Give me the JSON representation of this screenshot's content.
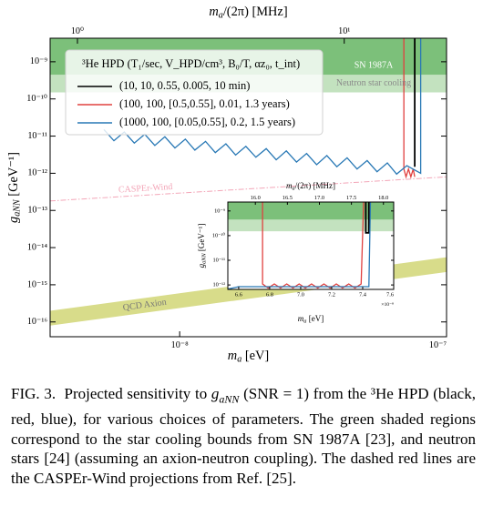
{
  "chart_data": [
    {
      "type": "line",
      "xscale": "log",
      "yscale": "log",
      "xlabel": {
        "main": "m",
        "sub": "a",
        "unit": " [eV]"
      },
      "x2label": {
        "main": "m",
        "sub": "a",
        "unit": "/(2π) [MHz]"
      },
      "ylabel": {
        "main": "g",
        "sub": "aNN",
        "unit": " [GeV⁻¹]"
      },
      "xlim": [
        3.27e-09,
        1e-07
      ],
      "xticks": [
        {
          "value": 1e-08,
          "label": "10⁻⁸"
        },
        {
          "value": 1e-07,
          "label": "10⁻⁷"
        }
      ],
      "x2lim": [
        0.79,
        24.18
      ],
      "x2ticks": [
        {
          "value": 1,
          "label": "10⁰"
        },
        {
          "value": 10,
          "label": "10¹"
        }
      ],
      "ylim": [
        4e-17,
        4.3e-09
      ],
      "yticks": [
        {
          "value": 1e-09,
          "label": "10⁻⁹"
        },
        {
          "value": 1e-10,
          "label": "10⁻¹⁰"
        },
        {
          "value": 1e-11,
          "label": "10⁻¹¹"
        },
        {
          "value": 1e-12,
          "label": "10⁻¹²"
        },
        {
          "value": 1e-13,
          "label": "10⁻¹³"
        },
        {
          "value": 1e-14,
          "label": "10⁻¹⁴"
        },
        {
          "value": 1e-15,
          "label": "10⁻¹⁵"
        },
        {
          "value": 1e-16,
          "label": "10⁻¹⁶"
        }
      ],
      "legend": {
        "title": "³He HPD (T₁/sec, V_HPD/cm³, B₀/T, αz₀, t_int)",
        "position": "upper left"
      },
      "regions": [
        {
          "name": "Neutron star cooling",
          "ymin": 1.5e-10,
          "color": "#c3e2bf"
        },
        {
          "name": "SN 1987A",
          "ymin": 4.5e-10,
          "color": "#7cc07a"
        }
      ],
      "bands": [
        {
          "name": "QCD Axion",
          "x": [
            3.27e-09,
            1e-07
          ],
          "low": [
            8e-17,
            2.2e-15
          ],
          "high": [
            2e-16,
            5.5e-15
          ],
          "color": "#d8dc8a"
        }
      ],
      "projections": [
        {
          "name": "CASPEr-Wind",
          "x": [
            3.27e-09,
            1e-07
          ],
          "values": [
            1.8e-13,
            8e-13
          ],
          "color": "#f3a6b8"
        }
      ],
      "series": [
        {
          "name": "(10, 10, 0.55, 0.005, 10 min)",
          "color": "#000000",
          "x": [
            7.6e-08,
            7.6e-08
          ],
          "values": [
            4.3e-09,
            1.5e-12
          ]
        },
        {
          "name": "(100, 100, [0.5,0.55], 0.01, 1.3 years)",
          "color": "#e0403f",
          "x": [
            6.92e-08,
            6.92e-08,
            7.05e-08,
            7.2e-08,
            7.35e-08,
            7.5e-08,
            7.6e-08
          ],
          "values": [
            4.3e-09,
            1.3e-12,
            8e-13,
            1.3e-12,
            8e-13,
            1.3e-12,
            8e-13
          ]
        },
        {
          "name": "(1000, 100, [0.05,0.55], 0.2, 1.5 years)",
          "color": "#2878b5",
          "x": [
            5.2e-09,
            5.67e-09,
            6.2e-09,
            6.76e-09,
            7.4e-09,
            8.07e-09,
            8.8e-09,
            9.6e-09,
            1.05e-08,
            1.14e-08,
            1.25e-08,
            1.36e-08,
            1.49e-08,
            1.62e-08,
            1.77e-08,
            1.93e-08,
            2.11e-08,
            2.3e-08,
            2.51e-08,
            2.74e-08,
            2.99e-08,
            3.26e-08,
            3.56e-08,
            3.88e-08,
            4.24e-08,
            4.62e-08,
            5.04e-08,
            5.49e-08,
            6e-08,
            6.5e-08,
            7.1e-08,
            8e-08,
            8e-08
          ],
          "values": [
            1.5e-11,
            7.5e-12,
            1.29e-11,
            6.5e-12,
            1.12e-11,
            5.6e-12,
            9.6e-12,
            4.8e-12,
            8.3e-12,
            4.2e-12,
            7.2e-12,
            3.6e-12,
            6.2e-12,
            3.1e-12,
            5.3e-12,
            2.7e-12,
            4.6e-12,
            2.3e-12,
            4e-12,
            2e-12,
            3.4e-12,
            1.7e-12,
            3e-12,
            1.5e-12,
            2.6e-12,
            1.3e-12,
            2.2e-12,
            1.1e-12,
            1.9e-12,
            9.5e-13,
            1.6e-12,
            1e-12,
            4.3e-09
          ]
        }
      ]
    },
    {
      "type": "line",
      "xscale": "linear",
      "yscale": "log",
      "xlabel": {
        "main": "m",
        "sub": "a",
        "unit": " [eV]"
      },
      "x_multiplier": "×10⁻⁸",
      "x2label": {
        "main": "m",
        "sub": "a",
        "unit": "/(2π) [MHz]"
      },
      "ylabel": {
        "main": "g",
        "sub": "aNN",
        "unit": " [GeV⁻¹]"
      },
      "xlim": [
        6.53,
        7.6
      ],
      "xticks": [
        6.6,
        6.8,
        {
          "value": 7,
          "label": "7.0"
        },
        7.2,
        7.4,
        7.6
      ],
      "x2lim": [
        15.57,
        18.16
      ],
      "x2ticks": [
        {
          "value": 16,
          "label": "16.0"
        },
        16.5,
        {
          "value": 17,
          "label": "17.0"
        },
        17.5,
        {
          "value": 18,
          "label": "18.0"
        }
      ],
      "ylim": [
        6.6e-13,
        2.3e-09
      ],
      "yticks": [
        {
          "value": 1e-09,
          "label": "10⁻⁹"
        },
        {
          "value": 1e-10,
          "label": "10⁻¹⁰"
        },
        {
          "value": 1e-11,
          "label": "10⁻¹¹"
        },
        {
          "value": 1e-12,
          "label": "10⁻¹²"
        }
      ],
      "regions": [
        {
          "ymin": 1.5e-10,
          "color": "#c3e2bf"
        },
        {
          "ymin": 4.5e-10,
          "color": "#7cc07a"
        }
      ],
      "series": [
        {
          "color": "#000000",
          "x": [
            7.42,
            7.42,
            7.44,
            7.44
          ],
          "values": [
            2.3e-09,
            1.3e-10,
            1.3e-10,
            2.3e-09
          ]
        },
        {
          "color": "#e0403f",
          "x": [
            6.754,
            6.754,
            6.79,
            6.83,
            6.87,
            6.91,
            6.95,
            6.99,
            7.03,
            7.07,
            7.11,
            7.15,
            7.19,
            7.23,
            7.27,
            7.31,
            7.35,
            7.39,
            7.406
          ],
          "values": [
            2.3e-09,
            1.1e-12,
            7.5e-13,
            1.1e-12,
            7.5e-13,
            1.1e-12,
            7.5e-13,
            1.1e-12,
            7.5e-13,
            1.1e-12,
            7.5e-13,
            1.1e-12,
            7.5e-13,
            1.1e-12,
            7.5e-13,
            1.1e-12,
            7.5e-13,
            1.1e-12,
            2.3e-09
          ]
        },
        {
          "color": "#2878b5",
          "x": [
            6.53,
            6.6,
            7.44,
            7.45
          ],
          "values": [
            6.8e-13,
            8.5e-13,
            8.5e-13,
            2.3e-09
          ]
        }
      ]
    }
  ],
  "caption": {
    "label": "FIG. 3.",
    "text": [
      "Projected sensitivity to ",
      "g",
      "aNN",
      " (SNR = 1) from the ³He HPD (black, red, blue), for various choices of parameters. The green shaded regions correspond to the star cooling bounds from SN 1987A [23], and neutron stars [24] (assuming an axion-neutron coupling). The dashed red lines are the CASPEr-Wind projections from Ref. [25]."
    ]
  }
}
